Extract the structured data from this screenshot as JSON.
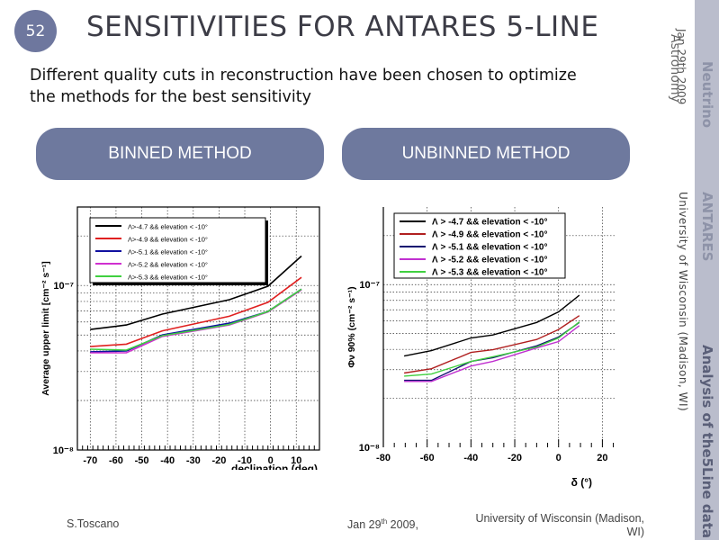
{
  "slide": {
    "number": "52",
    "title": "SENSITIVITIES FOR ANTARES 5-LINE",
    "subtitle_line1": "Different quality cuts in reconstruction have been chosen to optimize",
    "subtitle_line2": "the methods for the best sensitivity",
    "accent_color": "#6e799e"
  },
  "methods": {
    "binned_label": "BINNED METHOD",
    "unbinned_label": "UNBINNED METHOD"
  },
  "sidebar": {
    "neutrino": "Neutrino",
    "astronomy": "Astronomy",
    "date": "Jan 29th 2009",
    "antares": "ANTARES",
    "university": "University of Wisconsin  (Madison, WI)",
    "analysis": "Analysis of the5Line data"
  },
  "footer": {
    "author": "S.Toscano",
    "date_prefix": "Jan 29",
    "date_sup": "th",
    "date_suffix": " 2009,",
    "university_line1": "University of Wisconsin  (Madison,",
    "university_line2": "WI)"
  },
  "chart_data": [
    {
      "type": "line",
      "title": "",
      "xlabel": "declination (deg)",
      "ylabel": "Average upper limit [cm⁻² s⁻¹]",
      "yscale": "log",
      "xlim": [
        -75,
        19
      ],
      "ylim": [
        1e-08,
        3e-07
      ],
      "grid": true,
      "legend": "top-left",
      "x_ticks": [
        -70,
        -60,
        -50,
        -40,
        -30,
        -20,
        -10,
        0,
        10
      ],
      "y_tick_labels": [
        {
          "value": 1e-07,
          "label": "10⁻⁷"
        },
        {
          "value": 1e-08,
          "label": "10⁻⁸"
        }
      ],
      "series": [
        {
          "name": "Λ>-4.7 && elevation < -10°",
          "color": "#000000",
          "x": [
            -70,
            -56,
            -42,
            -16,
            -1,
            12
          ],
          "values": [
            5.4e-08,
            5.75e-08,
            6.7e-08,
            8.2e-08,
            9.9e-08,
            1.51e-07
          ]
        },
        {
          "name": "Λ>-4.9 && elevation < -10°",
          "color": "#e02020",
          "x": [
            -70,
            -56,
            -42,
            -16,
            -1,
            12
          ],
          "values": [
            4.25e-08,
            4.4e-08,
            5.3e-08,
            6.5e-08,
            7.9e-08,
            1.12e-07
          ]
        },
        {
          "name": "Λ>-5.1 && elevation < -10°",
          "color": "#1010a0",
          "x": [
            -70,
            -56,
            -42,
            -16,
            -1,
            12
          ],
          "values": [
            3.95e-08,
            4e-08,
            5e-08,
            5.9e-08,
            6.95e-08,
            9.5e-08
          ]
        },
        {
          "name": "Λ>-5.2 && elevation < -10°",
          "color": "#d030d0",
          "x": [
            -70,
            -56,
            -42,
            -16,
            -1,
            12
          ],
          "values": [
            3.9e-08,
            3.9e-08,
            4.9e-08,
            5.75e-08,
            6.9e-08,
            9.4e-08
          ]
        },
        {
          "name": "Λ>-5.3 && elevation < -10°",
          "color": "#40d040",
          "x": [
            -70,
            -56,
            -42,
            -16,
            -1,
            12
          ],
          "values": [
            4.1e-08,
            4.05e-08,
            4.95e-08,
            5.8e-08,
            6.95e-08,
            9.5e-08
          ]
        }
      ]
    },
    {
      "type": "line",
      "title": "",
      "xlabel": "δ (°)",
      "ylabel": "Φν 90% (cm⁻² s⁻¹)",
      "yscale": "log",
      "xlim": [
        -80,
        26
      ],
      "ylim": [
        1e-08,
        3e-07
      ],
      "grid": true,
      "legend": "top",
      "x_ticks": [
        -80,
        -60,
        -40,
        -20,
        0,
        20
      ],
      "y_tick_labels": [
        {
          "value": 1e-07,
          "label": "10⁻⁷"
        },
        {
          "value": 1e-08,
          "label": "10⁻⁸"
        }
      ],
      "series": [
        {
          "name": "Λ > -4.7 && elevation < -10°",
          "color": "#000000",
          "x": [
            -70.5,
            -58,
            -40,
            -30,
            -10,
            0,
            9.5
          ],
          "values": [
            3.64e-08,
            3.93e-08,
            4.7e-08,
            4.9e-08,
            5.85e-08,
            6.8e-08,
            8.6e-08
          ]
        },
        {
          "name": "Λ > -4.9 && elevation < -10°",
          "color": "#b02020",
          "x": [
            -70.5,
            -58,
            -40,
            -30,
            -10,
            0,
            9.5
          ],
          "values": [
            2.86e-08,
            3.04e-08,
            3.83e-08,
            3.98e-08,
            4.6e-08,
            5.3e-08,
            6.45e-08
          ]
        },
        {
          "name": "Λ > -5.1 && elevation < -10°",
          "color": "#101070",
          "x": [
            -70.5,
            -58,
            -40,
            -30,
            -10,
            0,
            9.5
          ],
          "values": [
            2.58e-08,
            2.58e-08,
            3.37e-08,
            3.55e-08,
            4.2e-08,
            4.76e-08,
            5.85e-08
          ]
        },
        {
          "name": "Λ > -5.2 && elevation < -10°",
          "color": "#c030d0",
          "x": [
            -70.5,
            -58,
            -40,
            -30,
            -10,
            0,
            9.5
          ],
          "values": [
            2.54e-08,
            2.54e-08,
            3.16e-08,
            3.37e-08,
            4.08e-08,
            4.47e-08,
            5.6e-08
          ]
        },
        {
          "name": "Λ > -5.3 && elevation < -10°",
          "color": "#40d040",
          "x": [
            -70.5,
            -58,
            -40,
            -30,
            -10,
            0,
            9.5
          ],
          "values": [
            2.74e-08,
            2.82e-08,
            3.37e-08,
            3.6e-08,
            4.14e-08,
            4.7e-08,
            5.9e-08
          ]
        }
      ]
    }
  ]
}
